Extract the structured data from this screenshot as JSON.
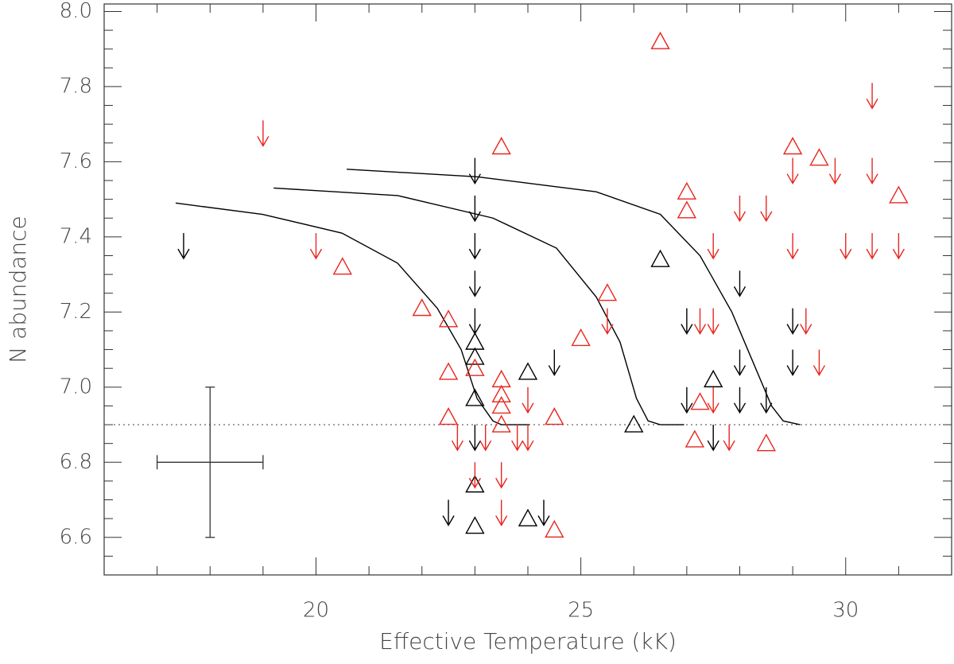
{
  "chart_data": {
    "type": "scatter",
    "x_label": "Effective Temperature (kK)",
    "y_label": "N abundance",
    "xlim": [
      16,
      32
    ],
    "ylim": [
      6.5,
      8.02
    ],
    "xticks": [
      20,
      25,
      30
    ],
    "xminorticks": [
      17,
      18,
      19,
      21,
      22,
      23,
      24,
      26,
      27,
      28,
      29,
      31
    ],
    "yticks": [
      6.6,
      6.8,
      {
        "value": 7.0,
        "label": "7.0"
      },
      7.2,
      7.4,
      7.6,
      7.8,
      {
        "value": 8.0,
        "label": "8.0"
      }
    ],
    "yminorticks": [
      6.55,
      6.65,
      6.7,
      6.75,
      6.85,
      6.9,
      6.95,
      7.05,
      7.1,
      7.15,
      7.25,
      7.3,
      7.35,
      7.45,
      7.5,
      7.55,
      7.65,
      7.7,
      7.75,
      7.85,
      7.9,
      7.95
    ],
    "series": [
      {
        "marker": "triangle",
        "color": "#000000",
        "x": [
          23.0,
          23.0,
          23.0,
          23.0,
          23.0,
          24.0,
          24.0,
          26.0,
          26.5,
          27.5
        ],
        "y": [
          7.12,
          7.08,
          6.97,
          6.74,
          6.63,
          7.04,
          6.65,
          6.9,
          7.34,
          7.02
        ]
      },
      {
        "marker": "triangle",
        "color": "#e8261e",
        "x": [
          26.5,
          23.5,
          29.0,
          29.5,
          27.0,
          27.0,
          31.0,
          20.5,
          22.0,
          22.5,
          25.5,
          25.0,
          23.0,
          22.5,
          23.5,
          23.5,
          23.5,
          23.5,
          22.5,
          24.5,
          27.25,
          27.15,
          28.5,
          24.5
        ],
        "y": [
          7.92,
          7.64,
          7.64,
          7.61,
          7.52,
          7.47,
          7.51,
          7.32,
          7.21,
          7.18,
          7.25,
          7.13,
          7.05,
          7.04,
          7.02,
          6.98,
          6.95,
          6.9,
          6.92,
          6.92,
          6.96,
          6.86,
          6.85,
          6.62
        ]
      },
      {
        "marker": "arrow",
        "color": "#000000",
        "x": [
          17.5,
          23.0,
          23.0,
          23.0,
          23.0,
          23.0,
          23.0,
          22.5,
          24.3,
          24.5,
          27.0,
          27.0,
          28.0,
          28.0,
          28.0,
          28.5,
          27.5,
          29.0,
          29.0
        ],
        "y": [
          7.41,
          7.61,
          7.51,
          7.41,
          7.31,
          7.21,
          6.9,
          6.7,
          6.7,
          7.1,
          7.21,
          7.0,
          7.31,
          7.1,
          7.0,
          7.0,
          6.9,
          7.21,
          7.1
        ]
      },
      {
        "marker": "arrow",
        "color": "#e8261e",
        "x": [
          19.0,
          30.5,
          20.0,
          29.0,
          29.8,
          30.5,
          28.0,
          28.5,
          27.5,
          29.0,
          30.0,
          30.5,
          31.0,
          25.5,
          27.25,
          27.5,
          29.25,
          29.5,
          24.0,
          27.5,
          22.67,
          23.2,
          23.8,
          24.0,
          27.8,
          23.5,
          23.0,
          23.5
        ],
        "y": [
          7.71,
          7.81,
          7.41,
          7.61,
          7.61,
          7.61,
          7.51,
          7.51,
          7.41,
          7.41,
          7.41,
          7.41,
          7.41,
          7.21,
          7.21,
          7.21,
          7.21,
          7.1,
          7.0,
          7.0,
          6.9,
          6.9,
          6.9,
          6.9,
          6.9,
          6.8,
          6.8,
          6.7
        ]
      }
    ],
    "lines": [
      {
        "color": "#000000",
        "x": [
          17.35,
          18.99,
          20.49,
          21.54,
          22.29,
          22.74,
          23.04,
          23.34,
          23.5,
          24.03
        ],
        "y": [
          7.49,
          7.46,
          7.41,
          7.33,
          7.21,
          7.1,
          6.97,
          6.91,
          6.9,
          6.9
        ]
      },
      {
        "color": "#000000",
        "x": [
          19.2,
          21.54,
          23.34,
          24.54,
          25.29,
          25.74,
          26.05,
          26.27,
          26.5,
          26.95
        ],
        "y": [
          7.53,
          7.51,
          7.45,
          7.37,
          7.24,
          7.12,
          6.97,
          6.91,
          6.9,
          6.9
        ]
      },
      {
        "color": "#000000",
        "x": [
          20.58,
          23.04,
          25.29,
          26.5,
          27.25,
          27.85,
          28.3,
          28.6,
          28.82,
          29.14
        ],
        "y": [
          7.58,
          7.56,
          7.52,
          7.46,
          7.35,
          7.2,
          7.05,
          6.95,
          6.91,
          6.9
        ]
      }
    ],
    "hline": {
      "y": 6.9,
      "style": "dotted",
      "color": "#555555"
    },
    "error_bar": {
      "x": 18,
      "y": 6.8,
      "xerr": 1,
      "yerr": 0.2,
      "color": "#333333"
    }
  }
}
